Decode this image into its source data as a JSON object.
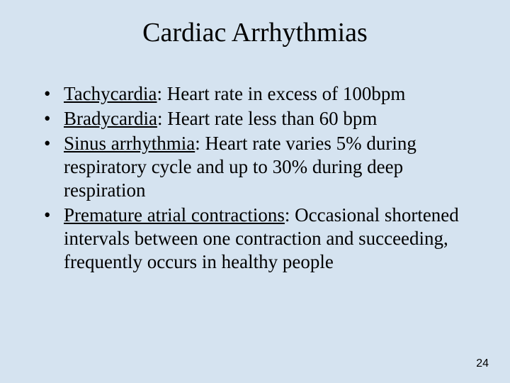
{
  "background_color": "#d5e3f0",
  "text_color": "#000000",
  "title": {
    "text": "Cardiac Arrhythmias",
    "fontsize": 38,
    "font_family": "Times New Roman"
  },
  "bullets": [
    {
      "term": "Tachycardia",
      "rest": ": Heart rate in excess of 100bpm"
    },
    {
      "term": "Bradycardia",
      "rest": ": Heart rate less than 60 bpm"
    },
    {
      "term": "Sinus arrhythmia",
      "rest": ": Heart rate varies 5% during respiratory cycle and up to 30% during deep respiration"
    },
    {
      "term": "Premature atrial contractions",
      "rest": ": Occasional shortened intervals between one contraction and succeeding, frequently occurs in healthy people"
    }
  ],
  "bullet_fontsize": 27,
  "page_number": "24"
}
